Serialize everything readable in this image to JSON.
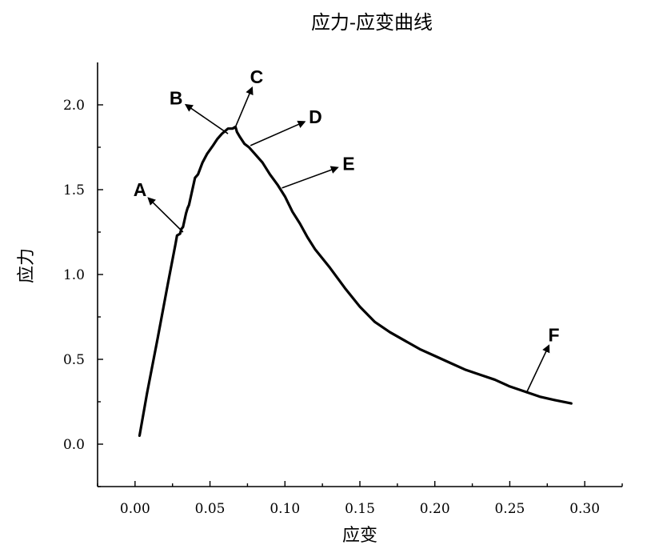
{
  "chart_data": {
    "type": "line",
    "title": "应力-应变曲线",
    "xlabel": "应变",
    "ylabel": "应力",
    "xlim": [
      -0.025,
      0.325
    ],
    "ylim": [
      -0.25,
      2.25
    ],
    "x_major_ticks": [
      0.0,
      0.05,
      0.1,
      0.15,
      0.2,
      0.25,
      0.3
    ],
    "x_tick_labels": [
      "0.00",
      "0.05",
      "0.10",
      "0.15",
      "0.20",
      "0.25",
      "0.30"
    ],
    "y_major_ticks": [
      0.0,
      0.5,
      1.0,
      1.5,
      2.0
    ],
    "y_tick_labels": [
      "0.0",
      "0.5",
      "1.0",
      "1.5",
      "2.0"
    ],
    "grid": false,
    "series": [
      {
        "x": [
          0.003,
          0.008,
          0.015,
          0.022,
          0.027,
          0.028,
          0.03,
          0.031,
          0.032,
          0.034,
          0.035,
          0.036,
          0.038,
          0.04,
          0.042,
          0.045,
          0.048,
          0.052,
          0.055,
          0.058,
          0.062,
          0.065,
          0.067,
          0.068,
          0.07,
          0.073,
          0.076,
          0.08,
          0.085,
          0.09,
          0.095,
          0.1,
          0.105,
          0.11,
          0.115,
          0.12,
          0.13,
          0.14,
          0.15,
          0.16,
          0.17,
          0.18,
          0.19,
          0.2,
          0.21,
          0.22,
          0.23,
          0.24,
          0.25,
          0.26,
          0.27,
          0.28,
          0.291
        ],
        "y": [
          0.05,
          0.3,
          0.62,
          0.95,
          1.18,
          1.23,
          1.24,
          1.27,
          1.28,
          1.36,
          1.39,
          1.41,
          1.49,
          1.57,
          1.59,
          1.66,
          1.71,
          1.76,
          1.8,
          1.83,
          1.86,
          1.86,
          1.87,
          1.84,
          1.81,
          1.77,
          1.75,
          1.71,
          1.66,
          1.59,
          1.53,
          1.46,
          1.37,
          1.3,
          1.22,
          1.15,
          1.04,
          0.92,
          0.81,
          0.72,
          0.66,
          0.61,
          0.56,
          0.52,
          0.48,
          0.44,
          0.41,
          0.38,
          0.34,
          0.31,
          0.28,
          0.26,
          0.24
        ]
      }
    ],
    "annotations": [
      {
        "label": "A",
        "x": 0.032,
        "y": 1.25,
        "tx": 0.009,
        "ty": 1.45
      },
      {
        "label": "B",
        "x": 0.062,
        "y": 1.83,
        "tx": 0.034,
        "ty": 2.0
      },
      {
        "label": "C",
        "x": 0.067,
        "y": 1.87,
        "tx": 0.078,
        "ty": 2.1
      },
      {
        "label": "D",
        "x": 0.077,
        "y": 1.76,
        "tx": 0.113,
        "ty": 1.9
      },
      {
        "label": "E",
        "x": 0.098,
        "y": 1.51,
        "tx": 0.135,
        "ty": 1.63
      },
      {
        "label": "F",
        "x": 0.261,
        "y": 0.3,
        "tx": 0.276,
        "ty": 0.58
      }
    ]
  }
}
